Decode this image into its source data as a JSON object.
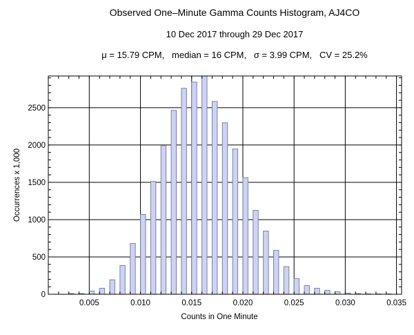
{
  "chart_data": {
    "type": "bar",
    "title": "Observed One–Minute Gamma Counts Histogram, AJ4CO",
    "subtitle": "10 Dec 2017 through 29 Dec 2017",
    "stats": "μ = 15.79 CPM,   median = 16 CPM,   σ = 3.99 CPM,   CV = 25.2%",
    "xlabel": "Counts in One Minute",
    "ylabel": "Occurrences x 1,000",
    "xlim": [
      0.001,
      0.0355
    ],
    "ylim": [
      0,
      2925
    ],
    "grid": true,
    "bin_width": 0.0005,
    "x_ticks": [
      "0.005",
      "0.010",
      "0.015",
      "0.020",
      "0.025",
      "0.030",
      "0.035"
    ],
    "y_ticks": [
      "0",
      "500",
      "1000",
      "1500",
      "2000",
      "2500"
    ],
    "x": [
      0.003,
      0.004,
      0.005,
      0.006,
      0.007,
      0.008,
      0.009,
      0.01,
      0.011,
      0.012,
      0.013,
      0.014,
      0.015,
      0.016,
      0.017,
      0.018,
      0.019,
      0.02,
      0.021,
      0.022,
      0.023,
      0.024,
      0.025,
      0.026,
      0.027,
      0.028,
      0.029,
      0.03,
      0.031,
      0.032,
      0.033,
      0.034
    ],
    "values": [
      9,
      9,
      43,
      80,
      194,
      385,
      681,
      1069,
      1512,
      1993,
      2464,
      2760,
      2843,
      2950,
      2584,
      2298,
      1947,
      1562,
      1124,
      847,
      588,
      370,
      210,
      117,
      80,
      52,
      34,
      15,
      9,
      6,
      5,
      5
    ],
    "colors": {
      "bar_fill": "#ccd3f4",
      "bar_stroke": "#7d8299",
      "grid": "#000000"
    }
  }
}
